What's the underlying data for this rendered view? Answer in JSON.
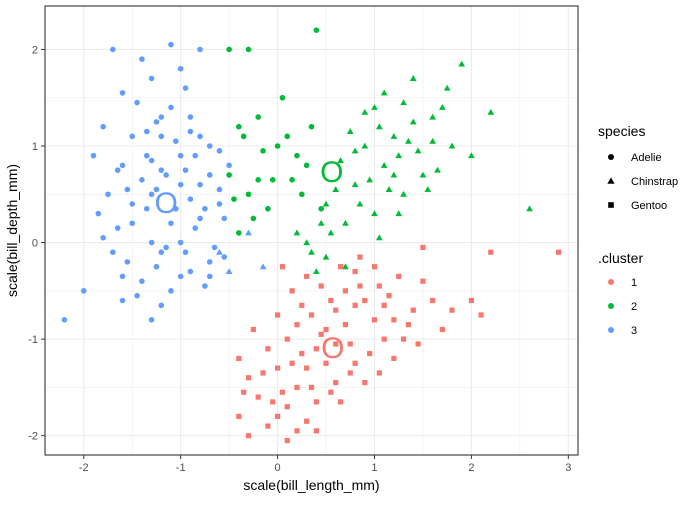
{
  "chart_data": {
    "type": "scatter",
    "title": "",
    "xlabel": "scale(bill_length_mm)",
    "ylabel": "scale(bill_depth_mm)",
    "xlim": [
      -2.4,
      3.1
    ],
    "ylim": [
      -2.2,
      2.45
    ],
    "x_ticks": [
      -2,
      -1,
      0,
      1,
      2,
      3
    ],
    "y_ticks": [
      -2,
      -1,
      0,
      1,
      2
    ],
    "x_tick_labels": [
      "-2",
      "-1",
      "0",
      "1",
      "2",
      "3"
    ],
    "y_tick_labels": [
      "-2",
      "-1",
      "0",
      "1",
      "2"
    ],
    "grid": true,
    "legend_placement": "right",
    "species_legend": {
      "title": "species",
      "entries": [
        {
          "label": "Adelie",
          "shape": "circle"
        },
        {
          "label": "Chinstrap",
          "shape": "triangle"
        },
        {
          "label": "Gentoo",
          "shape": "square"
        }
      ]
    },
    "cluster_legend": {
      "title": ".cluster",
      "entries": [
        {
          "label": "1",
          "color": "#F8766D"
        },
        {
          "label": "2",
          "color": "#00BA38"
        },
        {
          "label": "3",
          "color": "#619CFF"
        }
      ]
    },
    "centroids": [
      {
        "cluster": "1",
        "label": "O",
        "x": 0.57,
        "y": -1.1
      },
      {
        "cluster": "2",
        "label": "O",
        "x": 0.56,
        "y": 0.72
      },
      {
        "cluster": "3",
        "label": "O",
        "x": -1.15,
        "y": 0.4
      }
    ],
    "series": [
      {
        "cluster": "3",
        "species": "Adelie",
        "points": [
          [
            -1.7,
            2.0
          ],
          [
            -1.3,
            1.7
          ],
          [
            -1.4,
            1.9
          ],
          [
            -1.2,
            1.3
          ],
          [
            -0.9,
            1.3
          ],
          [
            -1.2,
            1.1
          ],
          [
            -1.8,
            1.2
          ],
          [
            -1.1,
            1.4
          ],
          [
            -0.7,
            1.0
          ],
          [
            -0.8,
            1.1
          ],
          [
            -1.0,
            1.8
          ],
          [
            -1.35,
            0.9
          ],
          [
            -1.6,
            0.8
          ],
          [
            -1.3,
            0.5
          ],
          [
            -0.8,
            0.6
          ],
          [
            -1.1,
            0.2
          ],
          [
            -1.5,
            0.2
          ],
          [
            -0.9,
            -0.3
          ],
          [
            -1.4,
            -0.4
          ],
          [
            -1.75,
            0.5
          ],
          [
            -1.2,
            -0.1
          ],
          [
            -0.6,
            0.4
          ],
          [
            -0.7,
            -0.2
          ],
          [
            -1.0,
            0.0
          ],
          [
            -0.5,
            0.8
          ],
          [
            -1.9,
            0.9
          ],
          [
            -1.6,
            -0.6
          ],
          [
            -1.3,
            -0.8
          ],
          [
            -0.55,
            -0.15
          ],
          [
            -1.0,
            0.6
          ],
          [
            -0.85,
            0.9
          ],
          [
            -1.45,
            1.45
          ],
          [
            -1.15,
            0.7
          ],
          [
            -0.95,
            -0.1
          ],
          [
            -1.25,
            -0.25
          ],
          [
            -1.65,
            0.15
          ],
          [
            -1.5,
            1.1
          ],
          [
            -0.75,
            0.35
          ],
          [
            -1.05,
            1.05
          ],
          [
            -1.3,
            0.0
          ],
          [
            -1.55,
            -0.2
          ],
          [
            -0.65,
            -0.05
          ],
          [
            -0.9,
            0.45
          ],
          [
            -1.35,
            0.35
          ],
          [
            -1.2,
            0.75
          ],
          [
            -0.6,
            0.95
          ],
          [
            -1.85,
            0.3
          ],
          [
            -1.1,
            -0.5
          ],
          [
            -0.95,
            1.6
          ],
          [
            -1.7,
            -0.1
          ],
          [
            -2.2,
            -0.8
          ],
          [
            -2.0,
            -0.5
          ],
          [
            -0.8,
            2.0
          ],
          [
            -1.1,
            2.05
          ],
          [
            -1.6,
            1.55
          ],
          [
            -1.25,
            1.25
          ],
          [
            -0.7,
            0.7
          ],
          [
            -1.4,
            0.65
          ],
          [
            -0.85,
            0.15
          ],
          [
            -1.0,
            -0.35
          ],
          [
            -1.45,
            -0.55
          ],
          [
            -1.2,
            -0.65
          ],
          [
            -0.75,
            -0.45
          ],
          [
            -1.55,
            0.55
          ],
          [
            -1.3,
            0.85
          ],
          [
            -1.05,
            0.35
          ],
          [
            -0.6,
            0.55
          ],
          [
            -1.8,
            0.05
          ],
          [
            -1.65,
            0.75
          ],
          [
            -1.0,
            0.9
          ],
          [
            -0.55,
            0.25
          ],
          [
            -1.35,
            1.15
          ],
          [
            -0.9,
            1.15
          ],
          [
            -1.15,
            -0.05
          ],
          [
            -1.5,
            0.4
          ],
          [
            -0.7,
            -0.35
          ],
          [
            -0.95,
            0.75
          ],
          [
            -1.25,
            0.55
          ],
          [
            -1.6,
            -0.35
          ],
          [
            -0.8,
            0.25
          ]
        ]
      },
      {
        "cluster": "3",
        "species": "Chinstrap",
        "points": [
          [
            -0.3,
            0.1
          ],
          [
            -0.15,
            -0.25
          ],
          [
            -0.6,
            -0.1
          ],
          [
            -0.5,
            -0.3
          ]
        ]
      },
      {
        "cluster": "2",
        "species": "Adelie",
        "points": [
          [
            0.4,
            2.2
          ],
          [
            -0.5,
            2.0
          ],
          [
            -0.3,
            2.0
          ],
          [
            0.05,
            1.5
          ],
          [
            -0.4,
            1.2
          ],
          [
            -0.35,
            1.1
          ],
          [
            -0.2,
            1.3
          ],
          [
            -0.05,
            0.65
          ],
          [
            0.25,
            0.5
          ],
          [
            0.1,
            1.1
          ],
          [
            0.2,
            0.9
          ],
          [
            -0.3,
            0.5
          ],
          [
            -0.5,
            0.7
          ],
          [
            -0.2,
            0.65
          ],
          [
            -0.25,
            0.25
          ],
          [
            0.0,
            1.0
          ],
          [
            -0.4,
            0.1
          ],
          [
            -0.1,
            0.35
          ],
          [
            0.3,
            0.8
          ],
          [
            0.45,
            0.35
          ],
          [
            0.15,
            0.65
          ],
          [
            -0.15,
            0.95
          ],
          [
            -0.45,
            0.45
          ],
          [
            0.35,
            1.2
          ]
        ]
      },
      {
        "cluster": "2",
        "species": "Chinstrap",
        "points": [
          [
            1.4,
            1.7
          ],
          [
            1.9,
            1.85
          ],
          [
            2.2,
            1.35
          ],
          [
            1.0,
            1.4
          ],
          [
            1.2,
            1.1
          ],
          [
            0.9,
            1.0
          ],
          [
            1.1,
            0.8
          ],
          [
            0.8,
            0.6
          ],
          [
            1.3,
            0.5
          ],
          [
            0.5,
            0.4
          ],
          [
            0.7,
            0.2
          ],
          [
            1.0,
            0.3
          ],
          [
            1.25,
            0.9
          ],
          [
            1.5,
            0.7
          ],
          [
            1.6,
            1.3
          ],
          [
            1.7,
            1.4
          ],
          [
            1.8,
            1.0
          ],
          [
            2.6,
            0.35
          ],
          [
            0.3,
            0.0
          ],
          [
            0.5,
            -0.15
          ],
          [
            0.4,
            -0.3
          ],
          [
            0.2,
            0.1
          ],
          [
            1.05,
            1.2
          ],
          [
            1.35,
            1.05
          ],
          [
            0.9,
            1.35
          ],
          [
            1.15,
            0.55
          ],
          [
            0.65,
            0.85
          ],
          [
            1.45,
            0.95
          ],
          [
            0.75,
            1.15
          ],
          [
            1.55,
            0.55
          ],
          [
            0.95,
            0.65
          ],
          [
            1.25,
            0.3
          ],
          [
            1.65,
            0.75
          ],
          [
            0.85,
            0.4
          ],
          [
            1.4,
            1.25
          ],
          [
            0.6,
            0.55
          ],
          [
            1.1,
            1.55
          ],
          [
            0.55,
            0.1
          ],
          [
            1.75,
            1.6
          ],
          [
            2.0,
            0.9
          ],
          [
            0.7,
            -0.25
          ],
          [
            1.3,
            1.45
          ],
          [
            1.05,
            0.05
          ],
          [
            0.35,
            -0.1
          ],
          [
            0.45,
            0.2
          ],
          [
            1.6,
            1.05
          ],
          [
            0.8,
            0.95
          ],
          [
            1.2,
            0.7
          ]
        ]
      },
      {
        "cluster": "1",
        "species": "Gentoo",
        "points": [
          [
            -0.4,
            -1.2
          ],
          [
            -0.3,
            -1.4
          ],
          [
            -0.2,
            -1.6
          ],
          [
            -0.4,
            -1.8
          ],
          [
            -0.3,
            -2.0
          ],
          [
            -0.1,
            -1.9
          ],
          [
            0.0,
            -1.8
          ],
          [
            0.1,
            -1.7
          ],
          [
            0.2,
            -1.5
          ],
          [
            0.3,
            -1.3
          ],
          [
            0.4,
            -1.1
          ],
          [
            0.5,
            -0.9
          ],
          [
            0.6,
            -0.7
          ],
          [
            0.7,
            -0.5
          ],
          [
            0.8,
            -0.3
          ],
          [
            0.9,
            -0.6
          ],
          [
            1.0,
            -0.8
          ],
          [
            1.1,
            -1.0
          ],
          [
            1.2,
            -1.2
          ],
          [
            1.3,
            -1.0
          ],
          [
            1.4,
            -0.7
          ],
          [
            1.5,
            -0.4
          ],
          [
            1.8,
            -0.7
          ],
          [
            2.0,
            -0.6
          ],
          [
            2.2,
            -0.1
          ],
          [
            2.9,
            -0.1
          ],
          [
            1.5,
            -0.05
          ],
          [
            0.1,
            -1.0
          ],
          [
            -0.1,
            -1.1
          ],
          [
            0.0,
            -1.3
          ],
          [
            0.2,
            -1.95
          ],
          [
            0.4,
            -1.65
          ],
          [
            0.6,
            -1.45
          ],
          [
            0.8,
            -1.25
          ],
          [
            1.05,
            -1.35
          ],
          [
            0.35,
            -0.75
          ],
          [
            0.15,
            -0.5
          ],
          [
            0.05,
            -0.25
          ],
          [
            -0.25,
            -0.9
          ],
          [
            0.55,
            -1.55
          ],
          [
            0.75,
            -1.05
          ],
          [
            0.95,
            -1.15
          ],
          [
            1.15,
            -0.55
          ],
          [
            1.25,
            -0.35
          ],
          [
            0.65,
            -0.25
          ],
          [
            0.45,
            -0.45
          ],
          [
            0.25,
            -0.65
          ],
          [
            0.05,
            -1.55
          ],
          [
            -0.15,
            -1.35
          ],
          [
            0.3,
            -1.85
          ],
          [
            0.5,
            -1.25
          ],
          [
            0.7,
            -0.85
          ],
          [
            0.9,
            -1.45
          ],
          [
            1.35,
            -0.85
          ],
          [
            1.6,
            -0.6
          ],
          [
            1.7,
            -0.9
          ],
          [
            2.1,
            -0.75
          ],
          [
            0.85,
            -0.15
          ],
          [
            1.05,
            -0.45
          ],
          [
            0.2,
            -0.85
          ],
          [
            -0.05,
            -1.65
          ],
          [
            0.15,
            -1.25
          ],
          [
            0.35,
            -1.5
          ],
          [
            0.6,
            -1.05
          ],
          [
            0.8,
            -0.65
          ],
          [
            1.0,
            -0.25
          ],
          [
            1.2,
            -0.8
          ],
          [
            0.4,
            -1.95
          ],
          [
            0.1,
            -2.05
          ],
          [
            -0.35,
            -1.55
          ],
          [
            0.25,
            -1.15
          ],
          [
            0.45,
            -0.95
          ],
          [
            0.65,
            -1.65
          ],
          [
            0.85,
            -0.45
          ],
          [
            1.1,
            -0.65
          ],
          [
            1.45,
            -1.05
          ],
          [
            0.55,
            -0.6
          ],
          [
            0.3,
            -0.35
          ],
          [
            0.0,
            -0.75
          ],
          [
            0.75,
            -1.35
          ]
        ]
      }
    ]
  }
}
